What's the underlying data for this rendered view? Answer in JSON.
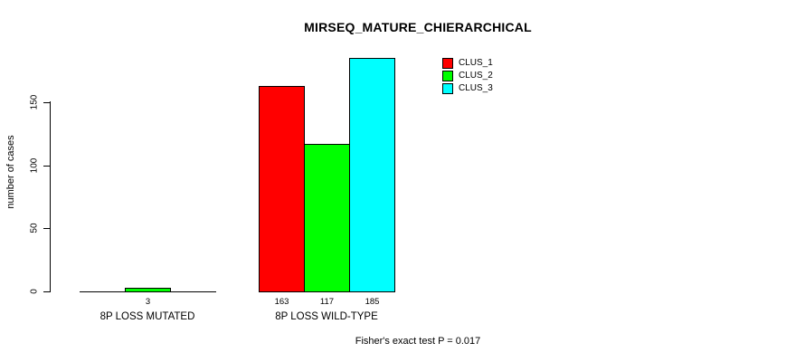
{
  "chart_data": {
    "type": "bar",
    "title": "MIRSEQ_MATURE_CHIERARCHICAL",
    "ylabel": "number of cases",
    "xlabel": "",
    "categories": [
      "8P LOSS MUTATED",
      "8P LOSS WILD-TYPE"
    ],
    "series": [
      {
        "name": "CLUS_1",
        "color": "#FF0000",
        "values": [
          0,
          163
        ]
      },
      {
        "name": "CLUS_2",
        "color": "#00FF00",
        "values": [
          3,
          117
        ]
      },
      {
        "name": "CLUS_3",
        "color": "#00FFFF",
        "values": [
          0,
          185
        ]
      }
    ],
    "yticks": [
      0,
      50,
      100,
      150
    ],
    "ylim": [
      0,
      187
    ],
    "grid": false,
    "legend_position": "top-right",
    "bar_value_labels_shown": true,
    "annotation": "Fisher's exact test P = 0.017"
  },
  "colors": {
    "background": "#FFFFFF",
    "axis": "#000000",
    "text": "#000000"
  }
}
